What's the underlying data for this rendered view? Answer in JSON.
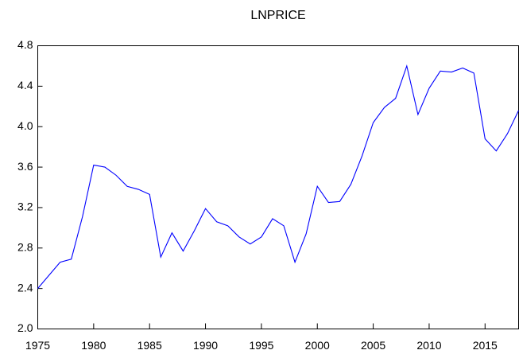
{
  "chart_data": {
    "type": "line",
    "title": "LNPRICE",
    "x": [
      1975,
      1976,
      1977,
      1978,
      1979,
      1980,
      1981,
      1982,
      1983,
      1984,
      1985,
      1986,
      1987,
      1988,
      1989,
      1990,
      1991,
      1992,
      1993,
      1994,
      1995,
      1996,
      1997,
      1998,
      1999,
      2000,
      2001,
      2002,
      2003,
      2004,
      2005,
      2006,
      2007,
      2008,
      2009,
      2010,
      2011,
      2012,
      2013,
      2014,
      2015,
      2016,
      2017,
      2018
    ],
    "series": [
      {
        "name": "LNPRICE",
        "color": "#0000ff",
        "values": [
          2.4,
          2.53,
          2.66,
          2.69,
          3.11,
          3.62,
          3.6,
          3.52,
          3.41,
          3.38,
          3.33,
          2.71,
          2.95,
          2.77,
          2.97,
          3.19,
          3.06,
          3.02,
          2.91,
          2.84,
          2.91,
          3.09,
          3.02,
          2.66,
          2.94,
          3.41,
          3.25,
          3.26,
          3.43,
          3.71,
          4.04,
          4.19,
          4.28,
          4.6,
          4.12,
          4.38,
          4.55,
          4.54,
          4.58,
          4.53,
          3.88,
          3.76,
          3.93,
          4.16
        ]
      }
    ],
    "xlim": [
      1975,
      2018
    ],
    "xticks": [
      1975,
      1980,
      1985,
      1990,
      1995,
      2000,
      2005,
      2010,
      2015
    ],
    "ylim": [
      2.0,
      4.8
    ],
    "yticks": [
      {
        "value": 2.0,
        "label": "2.0"
      },
      2.4,
      2.8,
      3.2,
      3.6,
      {
        "value": 4.0,
        "label": "4.0"
      },
      4.4,
      4.8
    ]
  }
}
